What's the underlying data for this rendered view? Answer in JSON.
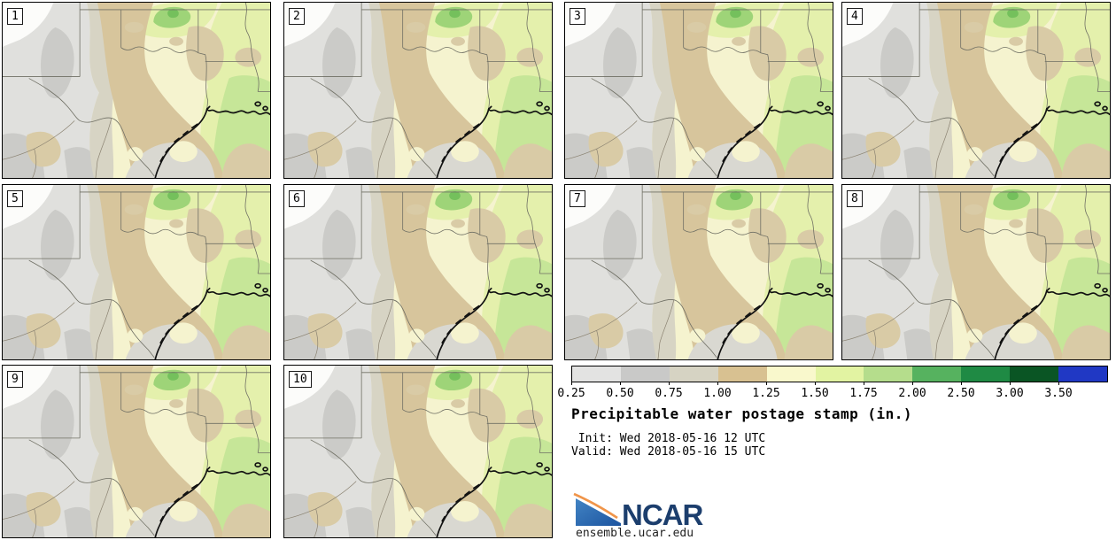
{
  "title": {
    "text": "Precipitable water postage stamp (in.)"
  },
  "meta": {
    "init_line": " Init: Wed 2018-05-16 12 UTC",
    "valid_line": "Valid: Wed 2018-05-16 15 UTC"
  },
  "panels": [
    {
      "label": "1"
    },
    {
      "label": "2"
    },
    {
      "label": "3"
    },
    {
      "label": "4"
    },
    {
      "label": "5"
    },
    {
      "label": "6"
    },
    {
      "label": "7"
    },
    {
      "label": "8"
    },
    {
      "label": "9"
    },
    {
      "label": "10"
    }
  ],
  "colorbar": {
    "units": "in.",
    "ticks": [
      "0.25",
      "0.50",
      "0.75",
      "1.00",
      "1.25",
      "1.50",
      "1.75",
      "2.00",
      "2.50",
      "3.00",
      "3.50"
    ],
    "segment_colors": [
      "#e3e3e2",
      "#c9c9c8",
      "#d6d3c3",
      "#d8c191",
      "#f9f8cc",
      "#e2f3a2",
      "#b5dd8c",
      "#56b25f",
      "#1f8a44",
      "#0a5524",
      "#2038c4"
    ]
  },
  "logo": {
    "name": "NCAR",
    "site": "ensemble.ucar.edu",
    "navy": "#1c3e6d",
    "blue_dark": "#1d55a0",
    "blue_light": "#4284c4",
    "orange": "#f0954a"
  },
  "map_colors": {
    "base_cream": "#f5f3cf",
    "light_gray": "#e0e0dd",
    "white_low": "#fcfcfa",
    "mid_gray": "#cbcbc8",
    "coast_gray": "#d9d8d1",
    "beige": "#d7d4c4",
    "tan": "#d7c59c",
    "tan_light": "#d9cba6",
    "yellow_green": "#e4f0ac",
    "light_green": "#c6e698",
    "mid_green": "#9ed478",
    "deep_green": "#74c05c",
    "border_line": "#6f6f64",
    "faint_line": "#8a8271",
    "coastline": "#111111"
  },
  "chart_data": {
    "type": "heatmap",
    "subtype": "ensemble postage-stamp filled-contour maps",
    "title": "Precipitable water postage stamp (in.)",
    "annotations": [
      "Init: Wed 2018-05-16 12 UTC",
      "Valid: Wed 2018-05-16 15 UTC"
    ],
    "variable": "Precipitable water",
    "units": "in.",
    "ensemble_members": [
      "1",
      "2",
      "3",
      "4",
      "5",
      "6",
      "7",
      "8",
      "9",
      "10"
    ],
    "panel_grid": "3 rows x 4 columns (10 map panels; legend and titles occupy the last two cells)",
    "region_shown": "Texas / Oklahoma / New Mexico / Gulf Coast with state borders and coastline",
    "colorbar": {
      "orientation": "horizontal",
      "levels": [
        0.25,
        0.5,
        0.75,
        1.0,
        1.25,
        1.5,
        1.75,
        2.0,
        2.5,
        3.0,
        3.5
      ],
      "colors": [
        "#e3e3e2",
        "#c9c9c8",
        "#d6d3c3",
        "#d8c191",
        "#f9f8cc",
        "#e2f3a2",
        "#b5dd8c",
        "#56b25f",
        "#1f8a44",
        "#0a5524",
        "#2038c4"
      ],
      "note": "values below 0.25 unshaded (white); blue segment extends beyond 3.50"
    },
    "field_pattern": "Lowest values (gray, 0.25-0.75 in.) over the northwest/New Mexico; ~1.00-1.25 in. (tan) band over central Texas to the coast; 1.25-1.75 in. (pale yellow to yellow-green) over east Texas/Oklahoma; up to ~2.00 in. (green) over Louisiana/Arkansas and northern Oklahoma patches",
    "legend_position": "bottom-right",
    "source_branding": [
      "NCAR",
      "ensemble.ucar.edu"
    ]
  }
}
